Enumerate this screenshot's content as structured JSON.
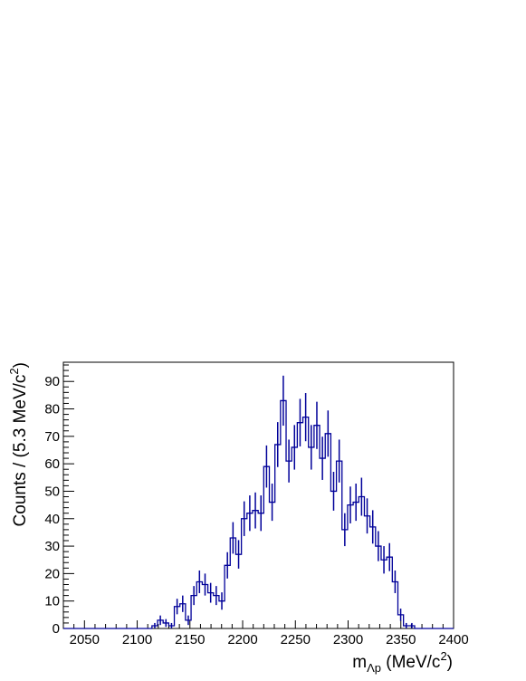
{
  "chart_data": {
    "type": "histogram",
    "x_label": {
      "main": "m",
      "sub": "Λp",
      "unit": " (MeV/c",
      "sup": "2",
      "close": ")"
    },
    "y_label": {
      "main": "Counts / (5.3 MeV/c",
      "sup": "2",
      "close": ")"
    },
    "xlim": [
      2030,
      2400
    ],
    "ylim": [
      0,
      97
    ],
    "x_ticks": [
      2050,
      2100,
      2150,
      2200,
      2250,
      2300,
      2350,
      2400
    ],
    "y_ticks": [
      0,
      10,
      20,
      30,
      40,
      50,
      60,
      70,
      80,
      90
    ],
    "bin_start": 2114,
    "bin_width": 5.3,
    "counts": [
      1,
      3,
      2,
      1,
      8,
      9,
      3,
      12,
      17,
      16,
      13,
      12,
      10,
      23,
      33,
      27,
      40,
      42,
      43,
      42,
      59,
      46,
      67,
      83,
      61,
      66,
      75,
      77,
      66,
      74,
      62,
      71,
      50,
      61,
      36,
      45,
      46,
      48,
      41,
      37,
      30,
      25,
      26,
      17,
      5,
      1,
      1
    ],
    "line_color": "#000099"
  }
}
